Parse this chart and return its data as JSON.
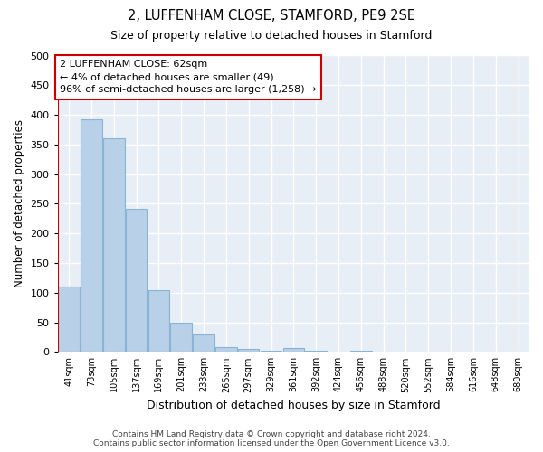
{
  "title": "2, LUFFENHAM CLOSE, STAMFORD, PE9 2SE",
  "subtitle": "Size of property relative to detached houses in Stamford",
  "xlabel": "Distribution of detached houses by size in Stamford",
  "ylabel": "Number of detached properties",
  "categories": [
    "41sqm",
    "73sqm",
    "105sqm",
    "137sqm",
    "169sqm",
    "201sqm",
    "233sqm",
    "265sqm",
    "297sqm",
    "329sqm",
    "361sqm",
    "392sqm",
    "424sqm",
    "456sqm",
    "488sqm",
    "520sqm",
    "552sqm",
    "584sqm",
    "616sqm",
    "648sqm",
    "680sqm"
  ],
  "values": [
    110,
    393,
    360,
    242,
    104,
    50,
    30,
    8,
    5,
    2,
    6,
    2,
    0,
    2,
    0,
    1,
    0,
    0,
    0,
    0,
    1
  ],
  "bar_color": "#b8d0e8",
  "bar_edge_color": "#8ab4d4",
  "ylim": [
    0,
    500
  ],
  "yticks": [
    0,
    50,
    100,
    150,
    200,
    250,
    300,
    350,
    400,
    450,
    500
  ],
  "annotation_box_text": "2 LUFFENHAM CLOSE: 62sqm\n← 4% of detached houses are smaller (49)\n96% of semi-detached houses are larger (1,258) →",
  "annotation_box_color": "#cc0000",
  "vline_color": "#cc0000",
  "bg_color": "#e8eef6",
  "grid_color": "#ffffff",
  "footer_line1": "Contains HM Land Registry data © Crown copyright and database right 2024.",
  "footer_line2": "Contains public sector information licensed under the Open Government Licence v3.0."
}
